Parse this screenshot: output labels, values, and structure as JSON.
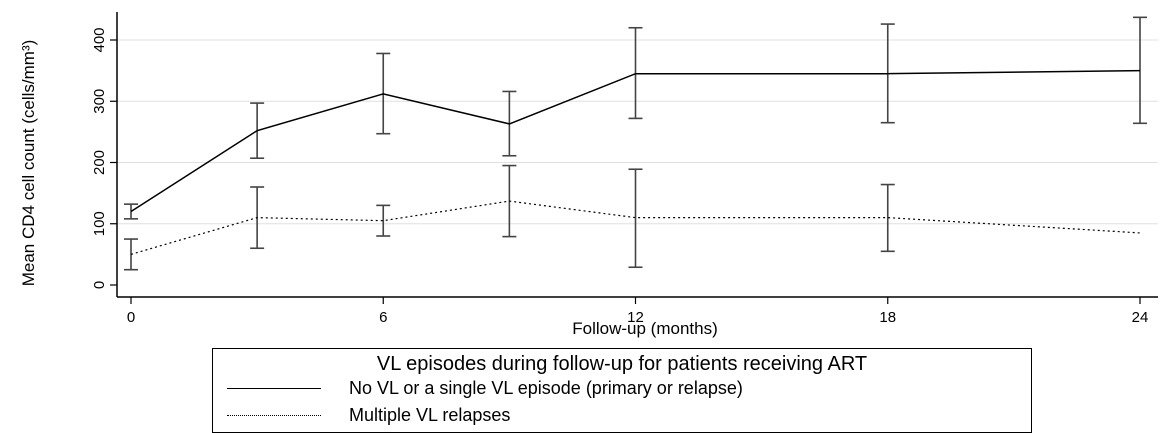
{
  "chart_data": {
    "type": "line",
    "title": "",
    "xlabel": "Follow-up (months)",
    "ylabel": "Mean CD4 cell count (cells/mm³)",
    "xlim": [
      0,
      24
    ],
    "ylim": [
      0,
      400
    ],
    "xticks": [
      0,
      6,
      12,
      18,
      24
    ],
    "yticks": [
      0,
      100,
      200,
      300,
      400
    ],
    "grid": true,
    "series": [
      {
        "name": "No VL or a single VL episode (primary or relapse)",
        "style": "solid",
        "x": [
          0,
          3,
          6,
          9,
          12,
          18,
          24
        ],
        "y": [
          120,
          252,
          312,
          263,
          345,
          345,
          350
        ],
        "lower": [
          108,
          207,
          247,
          211,
          272,
          265,
          264
        ],
        "upper": [
          132,
          297,
          378,
          316,
          420,
          426,
          437
        ]
      },
      {
        "name": "Multiple VL relapses",
        "style": "dotted",
        "x": [
          0,
          3,
          6,
          9,
          12,
          18,
          24
        ],
        "y": [
          50,
          110,
          105,
          137,
          110,
          110,
          85
        ],
        "lower": [
          25,
          60,
          80,
          79,
          29,
          55,
          null
        ],
        "upper": [
          75,
          160,
          130,
          195,
          189,
          164,
          null
        ]
      }
    ],
    "legend": {
      "title": "VL episodes during follow-up for patients receiving ART",
      "placement": "bottom"
    },
    "colors": {
      "line": "#000000",
      "grid": "#e0e0e0",
      "errorbar": "#444444"
    }
  }
}
